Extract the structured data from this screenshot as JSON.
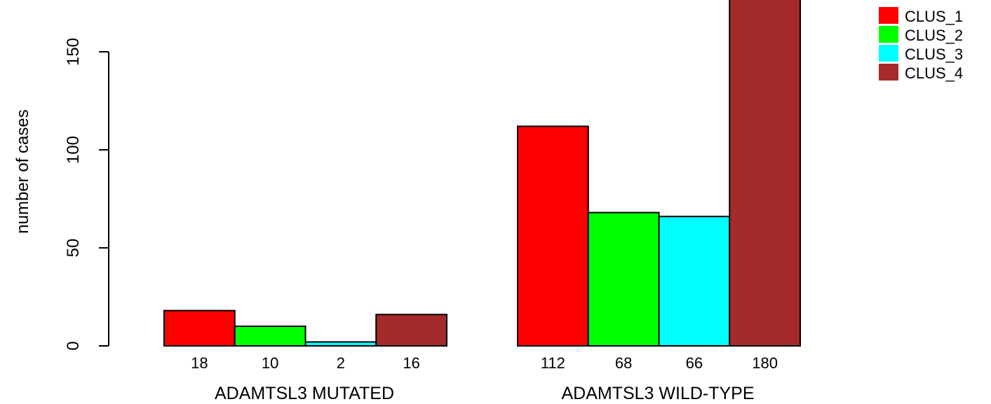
{
  "chart_data": {
    "type": "bar",
    "ylabel": "number of cases",
    "ylim": [
      0,
      180
    ],
    "y_ticks": [
      0,
      50,
      100,
      150
    ],
    "groups": [
      {
        "label": "ADAMTSL3 MUTATED",
        "values": [
          18,
          10,
          2,
          16
        ]
      },
      {
        "label": "ADAMTSL3 WILD-TYPE",
        "values": [
          112,
          68,
          66,
          180
        ]
      }
    ],
    "series": [
      {
        "name": "CLUS_1",
        "color": "#ff0000"
      },
      {
        "name": "CLUS_2",
        "color": "#00ff00"
      },
      {
        "name": "CLUS_3",
        "color": "#00ffff"
      },
      {
        "name": "CLUS_4",
        "color": "#a52a2a"
      }
    ],
    "legend_position": "top-right",
    "grid": false
  }
}
